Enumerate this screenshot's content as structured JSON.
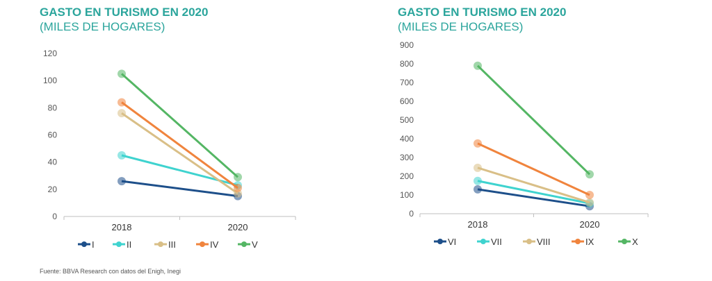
{
  "source": "Fuente: BBVA Research con datos del  Enigh, Inegi",
  "chart_data": [
    {
      "type": "line",
      "title": "GASTO EN TURISMO EN 2020",
      "subtitle": "(MILES DE HOGARES)",
      "categories": [
        "2018",
        "2020"
      ],
      "ylim": [
        0,
        120
      ],
      "yticks": [
        0,
        20,
        40,
        60,
        80,
        100,
        120
      ],
      "legend_position": "bottom",
      "series": [
        {
          "name": "I",
          "values": [
            26,
            15
          ],
          "color": "#1d4f8a"
        },
        {
          "name": "II",
          "values": [
            45,
            23
          ],
          "color": "#3fd3cf"
        },
        {
          "name": "III",
          "values": [
            76,
            17
          ],
          "color": "#d9bf87"
        },
        {
          "name": "IV",
          "values": [
            84,
            21
          ],
          "color": "#f0843d"
        },
        {
          "name": "V",
          "values": [
            105,
            29
          ],
          "color": "#54b664"
        }
      ]
    },
    {
      "type": "line",
      "title": "GASTO EN TURISMO EN 2020",
      "subtitle": "(MILES DE HOGARES)",
      "categories": [
        "2018",
        "2020"
      ],
      "ylim": [
        0,
        900
      ],
      "yticks": [
        0,
        100,
        200,
        300,
        400,
        500,
        600,
        700,
        800,
        900
      ],
      "legend_position": "bottom",
      "series": [
        {
          "name": "VI",
          "values": [
            130,
            40
          ],
          "color": "#1d4f8a"
        },
        {
          "name": "VII",
          "values": [
            175,
            55
          ],
          "color": "#3fd3cf"
        },
        {
          "name": "VIII",
          "values": [
            245,
            60
          ],
          "color": "#d9bf87"
        },
        {
          "name": "IX",
          "values": [
            375,
            100
          ],
          "color": "#f0843d"
        },
        {
          "name": "X",
          "values": [
            790,
            210
          ],
          "color": "#54b664"
        }
      ]
    }
  ]
}
